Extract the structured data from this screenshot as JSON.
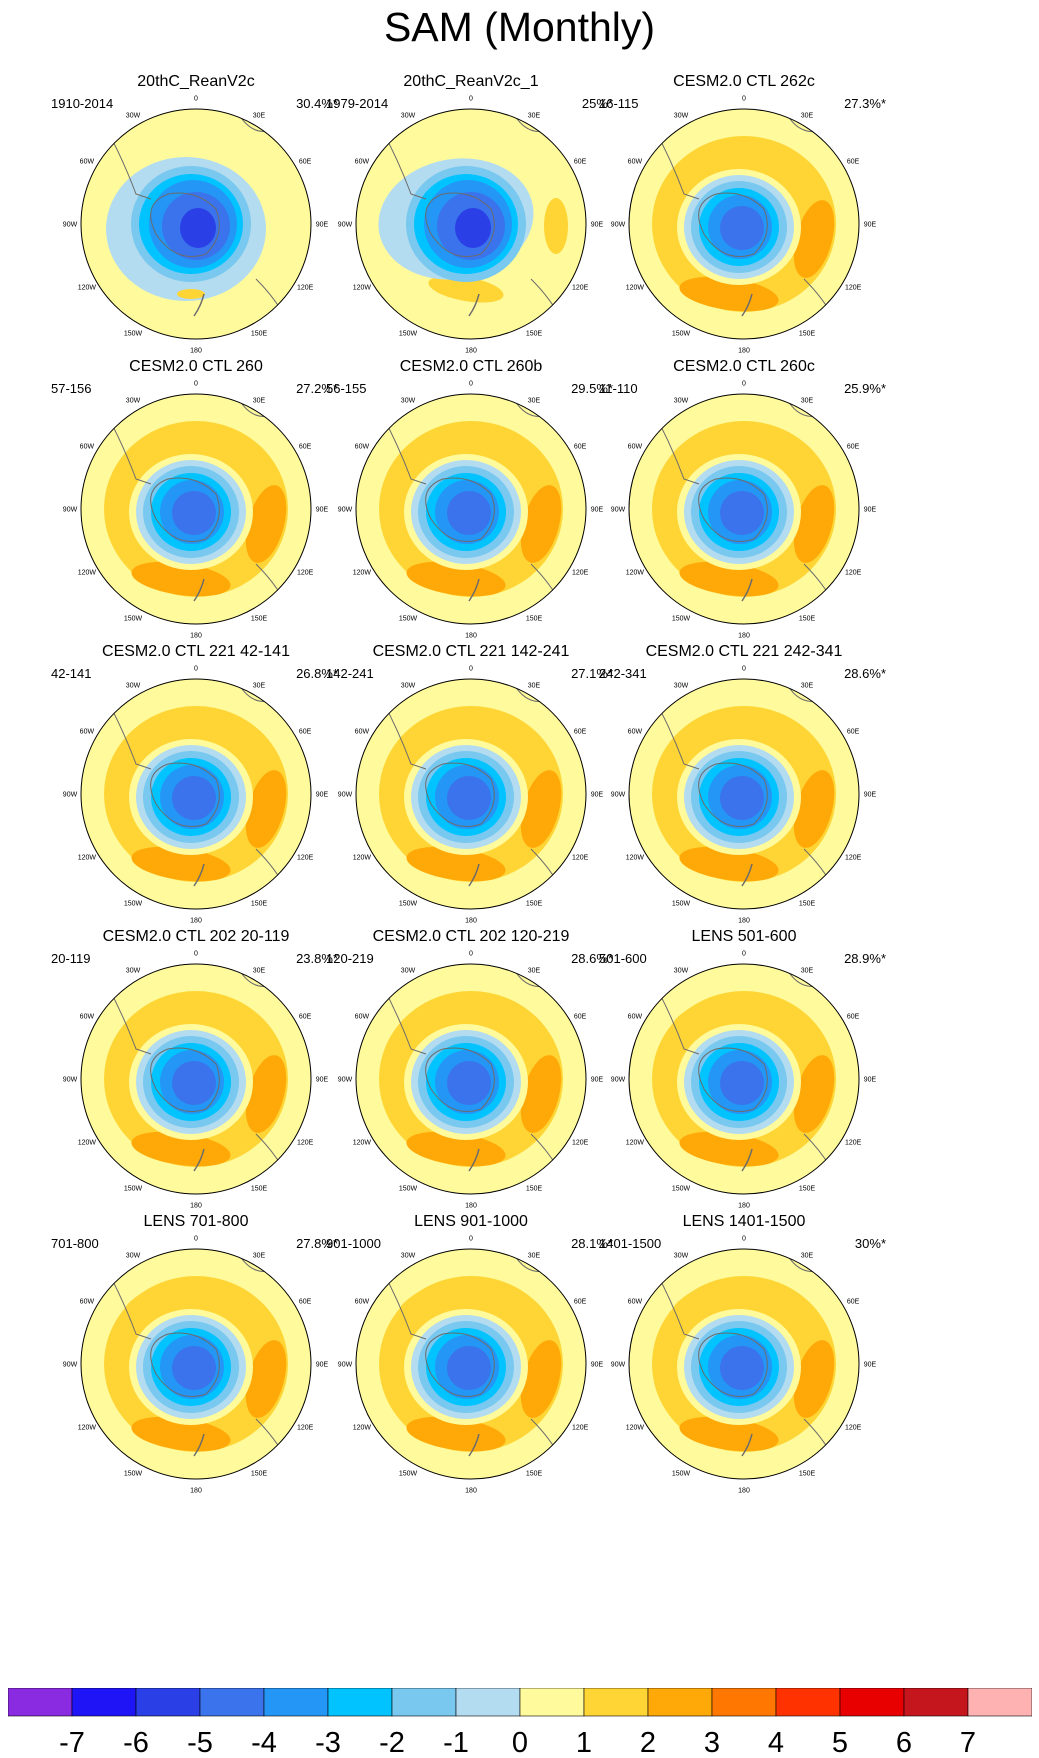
{
  "chart_data": {
    "type": "heatmap",
    "title": "SAM (Monthly)",
    "description_of_mapping": "15 polar stereographic maps of the Southern Hemisphere; contour colours follow the shared colour bar",
    "longitude_labels": [
      "0",
      "30E",
      "60E",
      "90E",
      "120E",
      "150E",
      "180",
      "150W",
      "120W",
      "90W",
      "60W",
      "30W"
    ],
    "panels": [
      {
        "title": "20thC_ReanV2c",
        "years": "1910-2014",
        "pct": "30.4%*",
        "pattern": "reanalysis"
      },
      {
        "title": "20thC_ReanV2c_1",
        "years": "1979-2014",
        "pct": "25%*",
        "pattern": "reanalysis"
      },
      {
        "title": "CESM2.0 CTL 262c",
        "years": "16-115",
        "pct": "27.3%*",
        "pattern": "ctl"
      },
      {
        "title": "CESM2.0 CTL 260",
        "years": "57-156",
        "pct": "27.2%*",
        "pattern": "ctl"
      },
      {
        "title": "CESM2.0 CTL 260b",
        "years": "56-155",
        "pct": "29.5%*",
        "pattern": "ctl"
      },
      {
        "title": "CESM2.0 CTL 260c",
        "years": "11-110",
        "pct": "25.9%*",
        "pattern": "ctl"
      },
      {
        "title": "CESM2.0 CTL 221 42-141",
        "years": "42-141",
        "pct": "26.8%*",
        "pattern": "ctl"
      },
      {
        "title": "CESM2.0 CTL 221 142-241",
        "years": "142-241",
        "pct": "27.1%*",
        "pattern": "ctl"
      },
      {
        "title": "CESM2.0 CTL 221 242-341",
        "years": "242-341",
        "pct": "28.6%*",
        "pattern": "ctl"
      },
      {
        "title": "CESM2.0 CTL 202 20-119",
        "years": "20-119",
        "pct": "23.8%*",
        "pattern": "ctl"
      },
      {
        "title": "CESM2.0 CTL 202 120-219",
        "years": "120-219",
        "pct": "28.6%*",
        "pattern": "ctl"
      },
      {
        "title": "LENS 501-600",
        "years": "501-600",
        "pct": "28.9%*",
        "pattern": "lens"
      },
      {
        "title": "LENS 701-800",
        "years": "701-800",
        "pct": "27.8%*",
        "pattern": "lens"
      },
      {
        "title": "LENS 901-1000",
        "years": "901-1000",
        "pct": "28.1%*",
        "pattern": "lens"
      },
      {
        "title": "LENS 1401-1500",
        "years": "1401-1500",
        "pct": "30%*",
        "pattern": "lens"
      }
    ],
    "colorbar": {
      "levels": [
        -7,
        -6,
        -5,
        -4,
        -3,
        -2,
        -1,
        0,
        1,
        2,
        3,
        4,
        5,
        6,
        7
      ],
      "labels": [
        "-7",
        "-6",
        "-5",
        "-4",
        "-3",
        "-2",
        "-1",
        "0",
        "1",
        "2",
        "3",
        "4",
        "5",
        "6",
        "7"
      ],
      "colors": [
        "#8a2be2",
        "#1f14f5",
        "#2a40e6",
        "#3a73ec",
        "#2496f5",
        "#00c3ff",
        "#78c8f0",
        "#b4dcf0",
        "#fffa9c",
        "#ffd535",
        "#ffa909",
        "#ff7700",
        "#ff3200",
        "#e80000",
        "#c4161c",
        "#ffb2b2"
      ]
    }
  }
}
